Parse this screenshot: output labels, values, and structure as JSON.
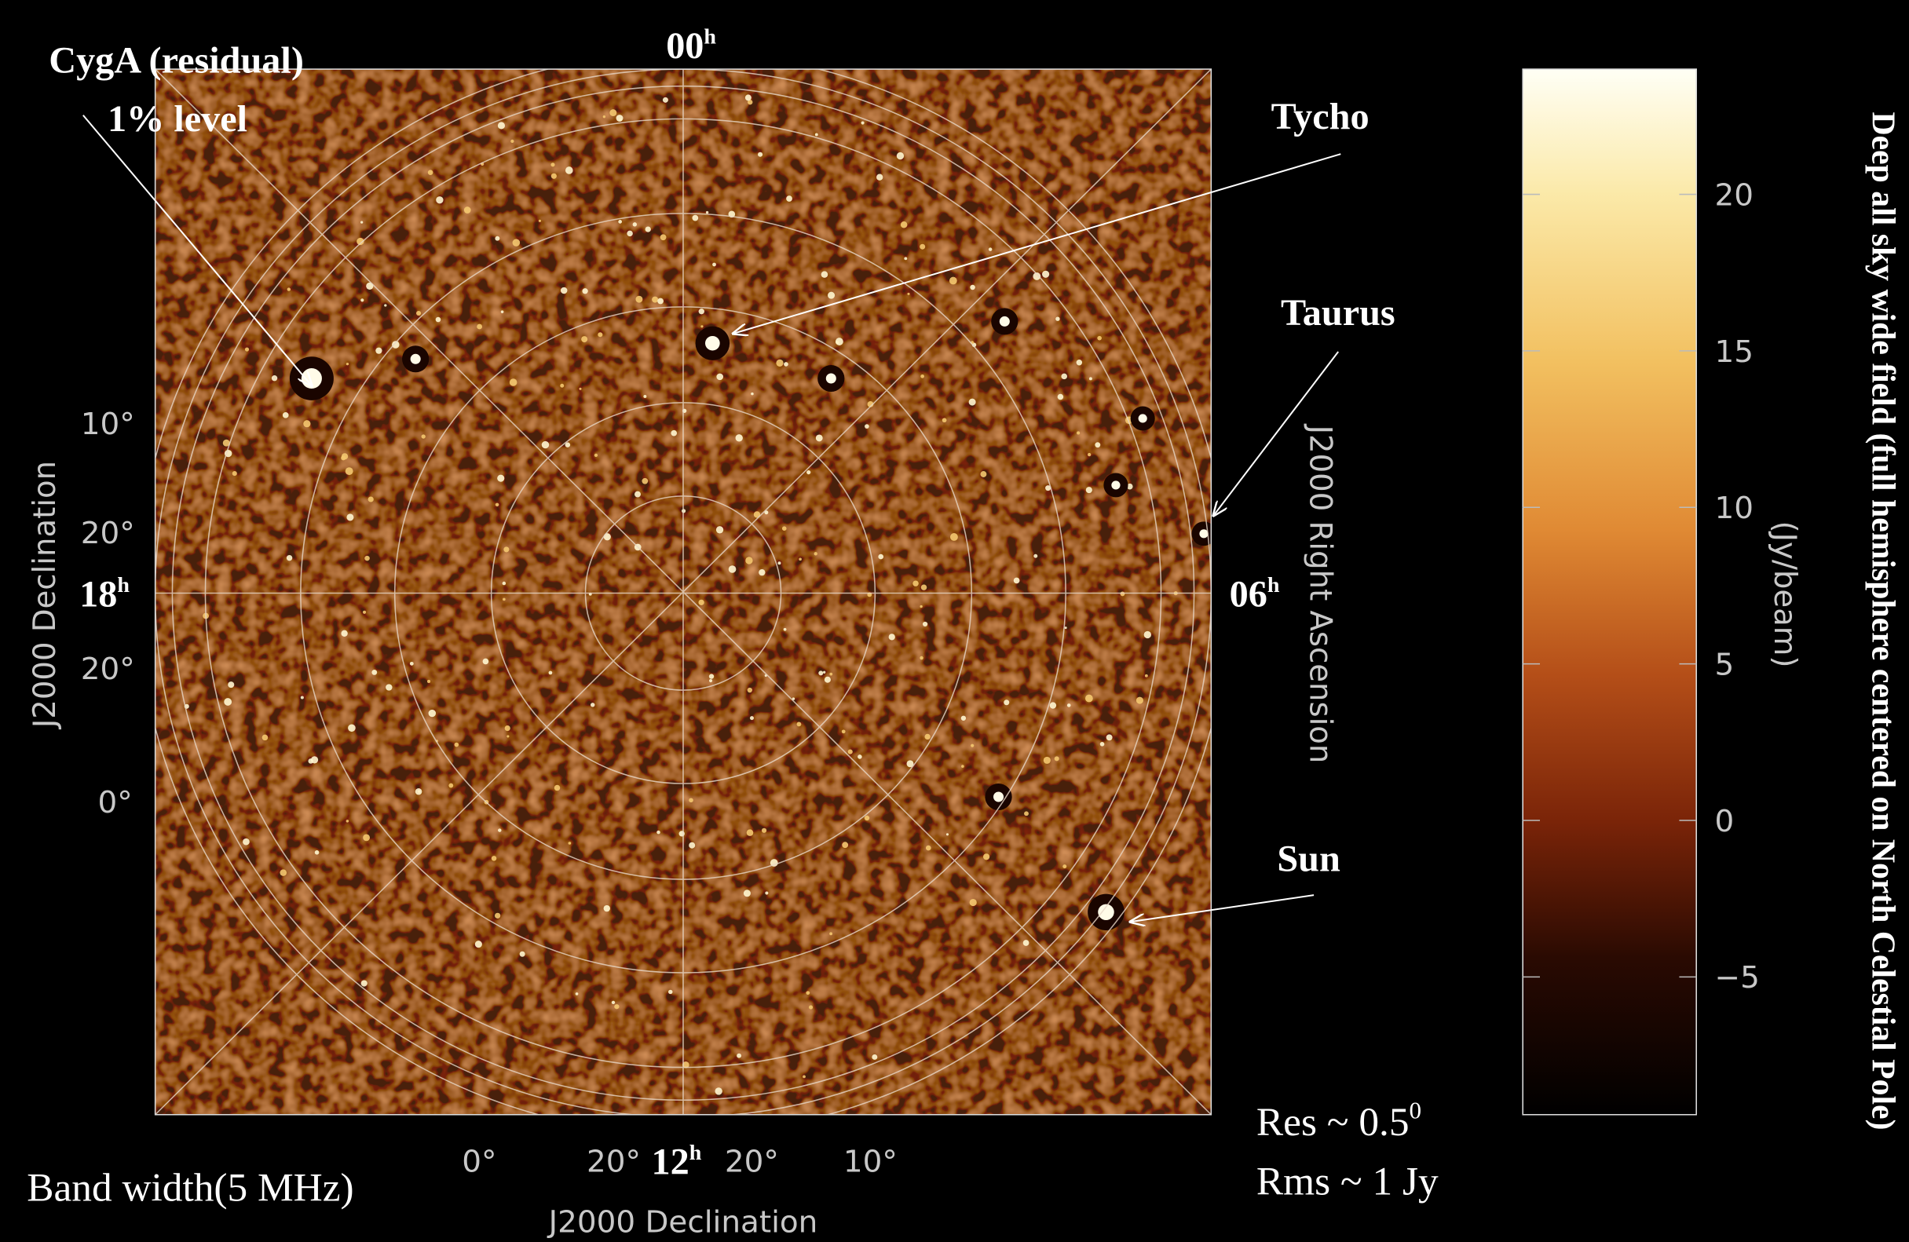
{
  "annotations": {
    "cyga": "CygA (residual)",
    "cyga_level": "1% level",
    "tycho": "Tycho",
    "taurus": "Taurus",
    "sun": "Sun"
  },
  "ra_labels": [
    {
      "hours": "00",
      "unit": "h"
    },
    {
      "hours": "06",
      "unit": "h"
    },
    {
      "hours": "12",
      "unit": "h"
    },
    {
      "hours": "18",
      "unit": "h"
    }
  ],
  "axes": {
    "dec_title_left": "J2000 Declination",
    "dec_title_bottom": "J2000 Declination",
    "ra_title": "J2000 Right Ascension",
    "dec_ticks_left": [
      "10°",
      "20°",
      "20°",
      "0°"
    ],
    "dec_ticks_bottom": [
      "0°",
      "20°",
      "20°",
      "10°"
    ]
  },
  "colorbar": {
    "label": "(Jy/beam)",
    "range": [
      -9.4,
      24
    ],
    "ticks": [
      20,
      15,
      10,
      5,
      0,
      {
        "value": -5,
        "label": "−5"
      }
    ]
  },
  "notes": {
    "bandwidth": "Band width(5 MHz)",
    "res": "Res ~ 0.5",
    "res_sup": "0",
    "rms": "Rms ~ 1 Jy"
  },
  "title": "Deep all sky wide field (full hemisphere centered on North Celestial Pole)"
}
